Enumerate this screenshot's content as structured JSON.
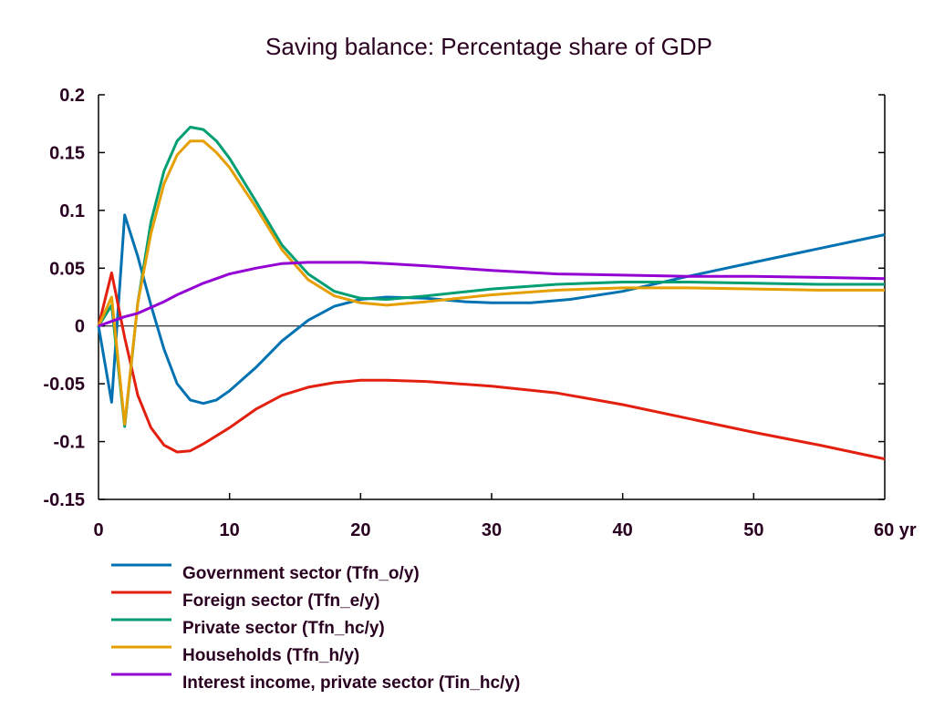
{
  "chart_data": {
    "type": "line",
    "title": "Saving balance: Percentage share of GDP",
    "xlabel": "",
    "ylabel": "",
    "xlim": [
      0,
      60
    ],
    "ylim": [
      -0.15,
      0.2
    ],
    "x_ticks": [
      0,
      10,
      20,
      30,
      40,
      50,
      60
    ],
    "x_tick_labels": [
      "0",
      "10",
      "20",
      "30",
      "40",
      "50",
      "60 yr"
    ],
    "y_ticks": [
      0.2,
      0.15,
      0.1,
      0.05,
      0,
      -0.05,
      -0.1,
      -0.15
    ],
    "y_tick_labels": [
      "0.2",
      "0.15",
      "0.1",
      "0.05",
      "0",
      "-0.05",
      "-0.1",
      "-0.15"
    ],
    "grid": false,
    "zero_line": true,
    "legend_position": "bottom-left",
    "series": [
      {
        "name": "Government sector (Tfn_o/y)",
        "color": "#0072b2",
        "x": [
          0,
          1,
          2,
          3,
          4,
          5,
          6,
          7,
          8,
          9,
          10,
          12,
          14,
          16,
          18,
          20,
          22,
          25,
          28,
          30,
          33,
          36,
          40,
          45,
          50,
          55,
          60
        ],
        "values": [
          0,
          -0.066,
          0.096,
          0.06,
          0.018,
          -0.02,
          -0.05,
          -0.064,
          -0.067,
          -0.064,
          -0.056,
          -0.036,
          -0.013,
          0.005,
          0.017,
          0.023,
          0.025,
          0.024,
          0.021,
          0.02,
          0.02,
          0.023,
          0.03,
          0.043,
          0.055,
          0.067,
          0.079
        ]
      },
      {
        "name": "Foreign sector (Tfn_e/y)",
        "color": "#e3200f",
        "x": [
          0,
          1,
          2,
          3,
          4,
          5,
          6,
          7,
          8,
          10,
          12,
          14,
          16,
          18,
          20,
          22,
          25,
          30,
          35,
          40,
          45,
          50,
          55,
          60
        ],
        "values": [
          0,
          0.046,
          -0.01,
          -0.06,
          -0.088,
          -0.103,
          -0.109,
          -0.108,
          -0.102,
          -0.088,
          -0.072,
          -0.06,
          -0.053,
          -0.049,
          -0.047,
          -0.047,
          -0.048,
          -0.052,
          -0.058,
          -0.068,
          -0.08,
          -0.092,
          -0.103,
          -0.115
        ]
      },
      {
        "name": "Private sector (Tfn_hc/y)",
        "color": "#009e73",
        "x": [
          0,
          1,
          2,
          3,
          4,
          5,
          6,
          7,
          8,
          9,
          10,
          12,
          14,
          16,
          18,
          20,
          22,
          25,
          30,
          35,
          40,
          45,
          50,
          55,
          60
        ],
        "values": [
          0,
          0.018,
          -0.087,
          0.02,
          0.09,
          0.134,
          0.16,
          0.172,
          0.17,
          0.16,
          0.145,
          0.108,
          0.07,
          0.045,
          0.03,
          0.024,
          0.023,
          0.026,
          0.032,
          0.036,
          0.038,
          0.038,
          0.037,
          0.036,
          0.036
        ]
      },
      {
        "name": "Households (Tfn_h/y)",
        "color": "#e69f00",
        "x": [
          0,
          1,
          2,
          3,
          4,
          5,
          6,
          7,
          8,
          9,
          10,
          12,
          14,
          16,
          18,
          20,
          22,
          25,
          30,
          35,
          40,
          45,
          50,
          55,
          60
        ],
        "values": [
          0,
          0.025,
          -0.085,
          0.02,
          0.08,
          0.123,
          0.148,
          0.16,
          0.16,
          0.15,
          0.137,
          0.103,
          0.066,
          0.04,
          0.026,
          0.02,
          0.018,
          0.021,
          0.027,
          0.031,
          0.033,
          0.033,
          0.032,
          0.031,
          0.031
        ]
      },
      {
        "name": "Interest income, private sector (Tin_hc/y)",
        "color": "#9400d3",
        "x": [
          0,
          1,
          2,
          3,
          4,
          5,
          6,
          7,
          8,
          10,
          12,
          14,
          16,
          18,
          20,
          22,
          25,
          30,
          35,
          40,
          45,
          50,
          55,
          60
        ],
        "values": [
          0,
          0.004,
          0.008,
          0.011,
          0.016,
          0.021,
          0.027,
          0.032,
          0.037,
          0.045,
          0.05,
          0.054,
          0.055,
          0.055,
          0.055,
          0.054,
          0.052,
          0.048,
          0.045,
          0.044,
          0.043,
          0.043,
          0.042,
          0.041
        ]
      }
    ]
  }
}
